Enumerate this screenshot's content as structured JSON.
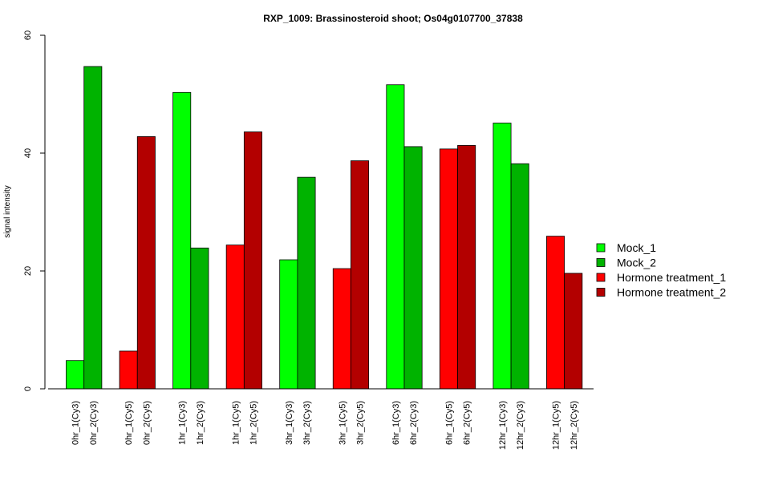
{
  "chart_data": {
    "type": "bar",
    "title": "RXP_1009: Brassinosteroid shoot; Os04g0107700_37838",
    "xlabel": "",
    "ylabel": "signal intensity",
    "ylim": [
      0,
      60
    ],
    "yticks": [
      0,
      20,
      40,
      60
    ],
    "grid": false,
    "legend_position": "right",
    "series_colors": {
      "Mock_1": "#00ff00",
      "Mock_2": "#00b300",
      "Hormone treatment_1": "#ff0000",
      "Hormone treatment_2": "#b30000"
    },
    "legend": [
      {
        "name": "Mock_1",
        "color": "#00ff00"
      },
      {
        "name": "Mock_2",
        "color": "#00b300"
      },
      {
        "name": "Hormone treatment_1",
        "color": "#ff0000"
      },
      {
        "name": "Hormone treatment_2",
        "color": "#b30000"
      }
    ],
    "groups": [
      {
        "bars": [
          {
            "label": "0hr_1(Cy3)",
            "series": "Mock_1",
            "value": 4.8
          },
          {
            "label": "0hr_2(Cy3)",
            "series": "Mock_2",
            "value": 54.7
          }
        ]
      },
      {
        "bars": [
          {
            "label": "0hr_1(Cy5)",
            "series": "Hormone treatment_1",
            "value": 6.4
          },
          {
            "label": "0hr_2(Cy5)",
            "series": "Hormone treatment_2",
            "value": 42.8
          }
        ]
      },
      {
        "bars": [
          {
            "label": "1hr_1(Cy3)",
            "series": "Mock_1",
            "value": 50.3
          },
          {
            "label": "1hr_2(Cy3)",
            "series": "Mock_2",
            "value": 23.9
          }
        ]
      },
      {
        "bars": [
          {
            "label": "1hr_1(Cy5)",
            "series": "Hormone treatment_1",
            "value": 24.4
          },
          {
            "label": "1hr_2(Cy5)",
            "series": "Hormone treatment_2",
            "value": 43.6
          }
        ]
      },
      {
        "bars": [
          {
            "label": "3hr_1(Cy3)",
            "series": "Mock_1",
            "value": 21.9
          },
          {
            "label": "3hr_2(Cy3)",
            "series": "Mock_2",
            "value": 35.9
          }
        ]
      },
      {
        "bars": [
          {
            "label": "3hr_1(Cy5)",
            "series": "Hormone treatment_1",
            "value": 20.4
          },
          {
            "label": "3hr_2(Cy5)",
            "series": "Hormone treatment_2",
            "value": 38.7
          }
        ]
      },
      {
        "bars": [
          {
            "label": "6hr_1(Cy3)",
            "series": "Mock_1",
            "value": 51.6
          },
          {
            "label": "6hr_2(Cy3)",
            "series": "Mock_2",
            "value": 41.1
          }
        ]
      },
      {
        "bars": [
          {
            "label": "6hr_1(Cy5)",
            "series": "Hormone treatment_1",
            "value": 40.7
          },
          {
            "label": "6hr_2(Cy5)",
            "series": "Hormone treatment_2",
            "value": 41.3
          }
        ]
      },
      {
        "bars": [
          {
            "label": "12hr_1(Cy3)",
            "series": "Mock_1",
            "value": 45.1
          },
          {
            "label": "12hr_2(Cy3)",
            "series": "Mock_2",
            "value": 38.2
          }
        ]
      },
      {
        "bars": [
          {
            "label": "12hr_1(Cy5)",
            "series": "Hormone treatment_1",
            "value": 25.9
          },
          {
            "label": "12hr_2(Cy5)",
            "series": "Hormone treatment_2",
            "value": 19.6
          }
        ]
      }
    ]
  }
}
